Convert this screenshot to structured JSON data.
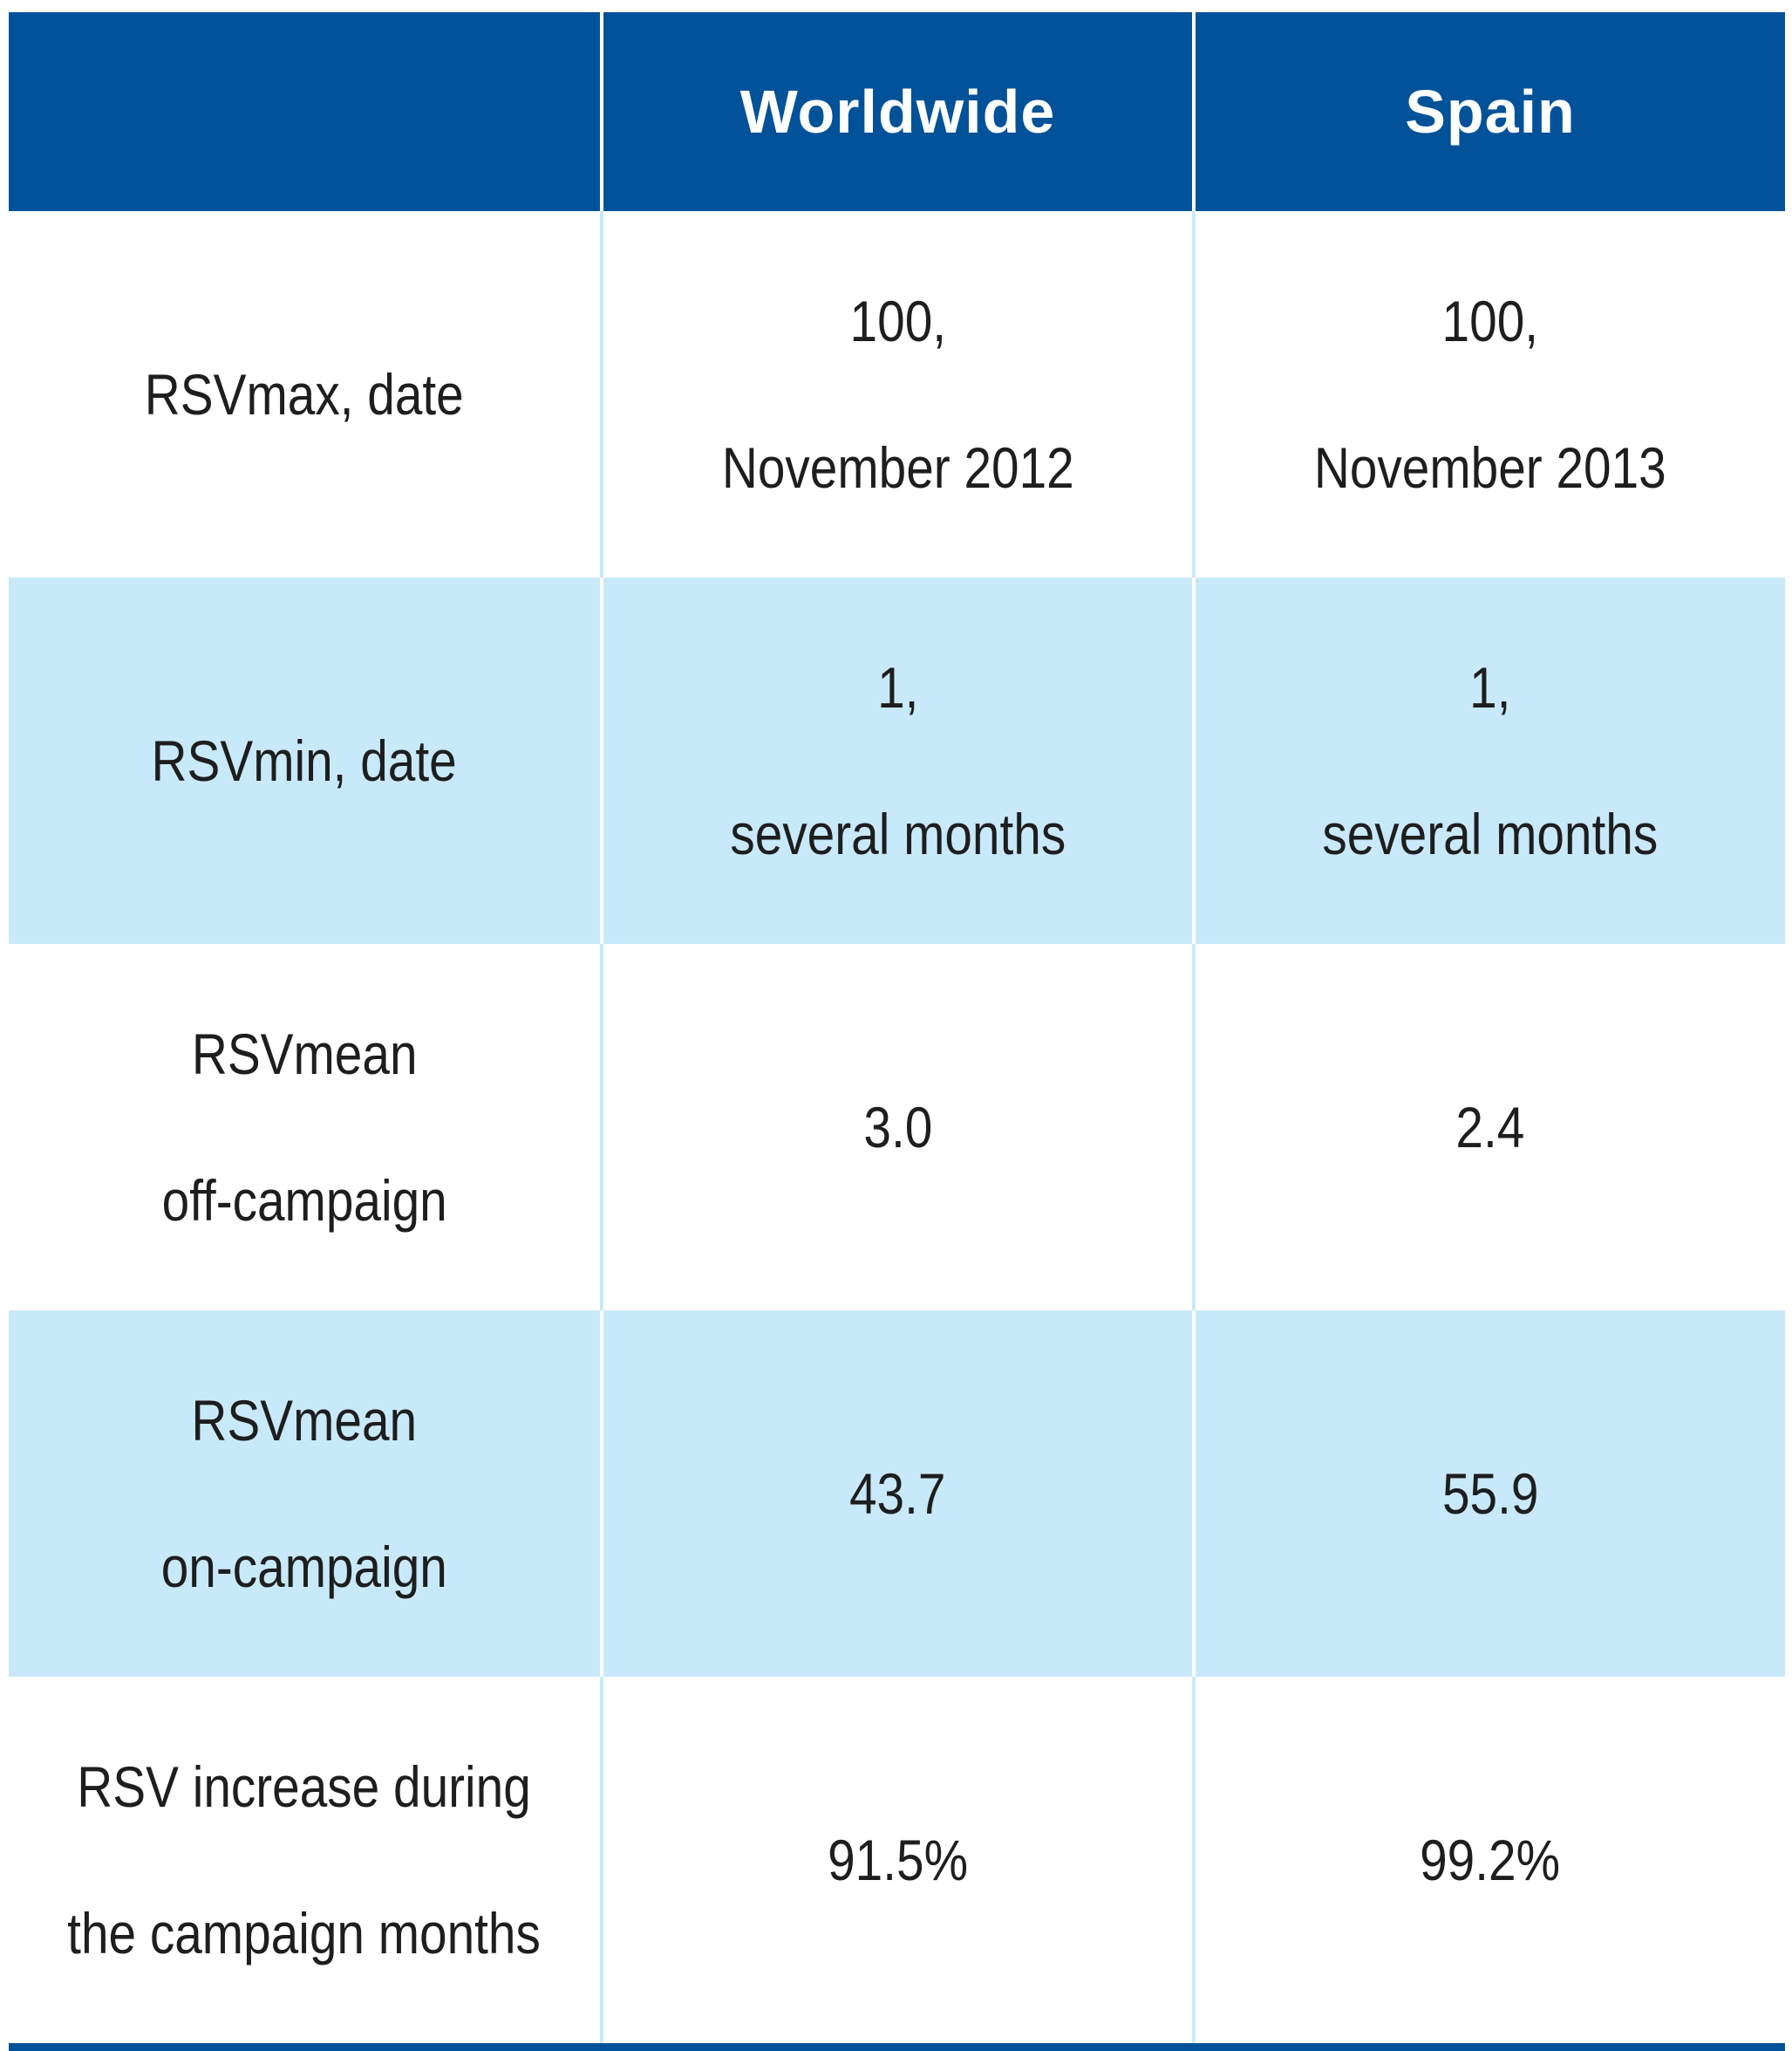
{
  "header": {
    "corner": "",
    "col_worldwide": "Worldwide",
    "col_spain": "Spain"
  },
  "rows": [
    {
      "label": [
        "RSVmax, date"
      ],
      "worldwide": [
        "100,",
        "November 2012"
      ],
      "spain": [
        "100,",
        "November 2013"
      ]
    },
    {
      "label": [
        "RSVmin, date"
      ],
      "worldwide": [
        "1,",
        "several months"
      ],
      "spain": [
        "1,",
        "several months"
      ]
    },
    {
      "label": [
        "RSVmean",
        "off-campaign"
      ],
      "worldwide": [
        "3.0"
      ],
      "spain": [
        "2.4"
      ]
    },
    {
      "label": [
        "RSVmean",
        "on-campaign"
      ],
      "worldwide": [
        "43.7"
      ],
      "spain": [
        "55.9"
      ]
    },
    {
      "label": [
        "RSV increase during",
        "the campaign months"
      ],
      "worldwide": [
        "91.5%"
      ],
      "spain": [
        "99.2%"
      ]
    }
  ],
  "colors": {
    "header_bg": "#02529a",
    "header_text": "#ffffff",
    "alt_row_bg": "#c8e9fa",
    "body_text": "#1e1e1e"
  }
}
